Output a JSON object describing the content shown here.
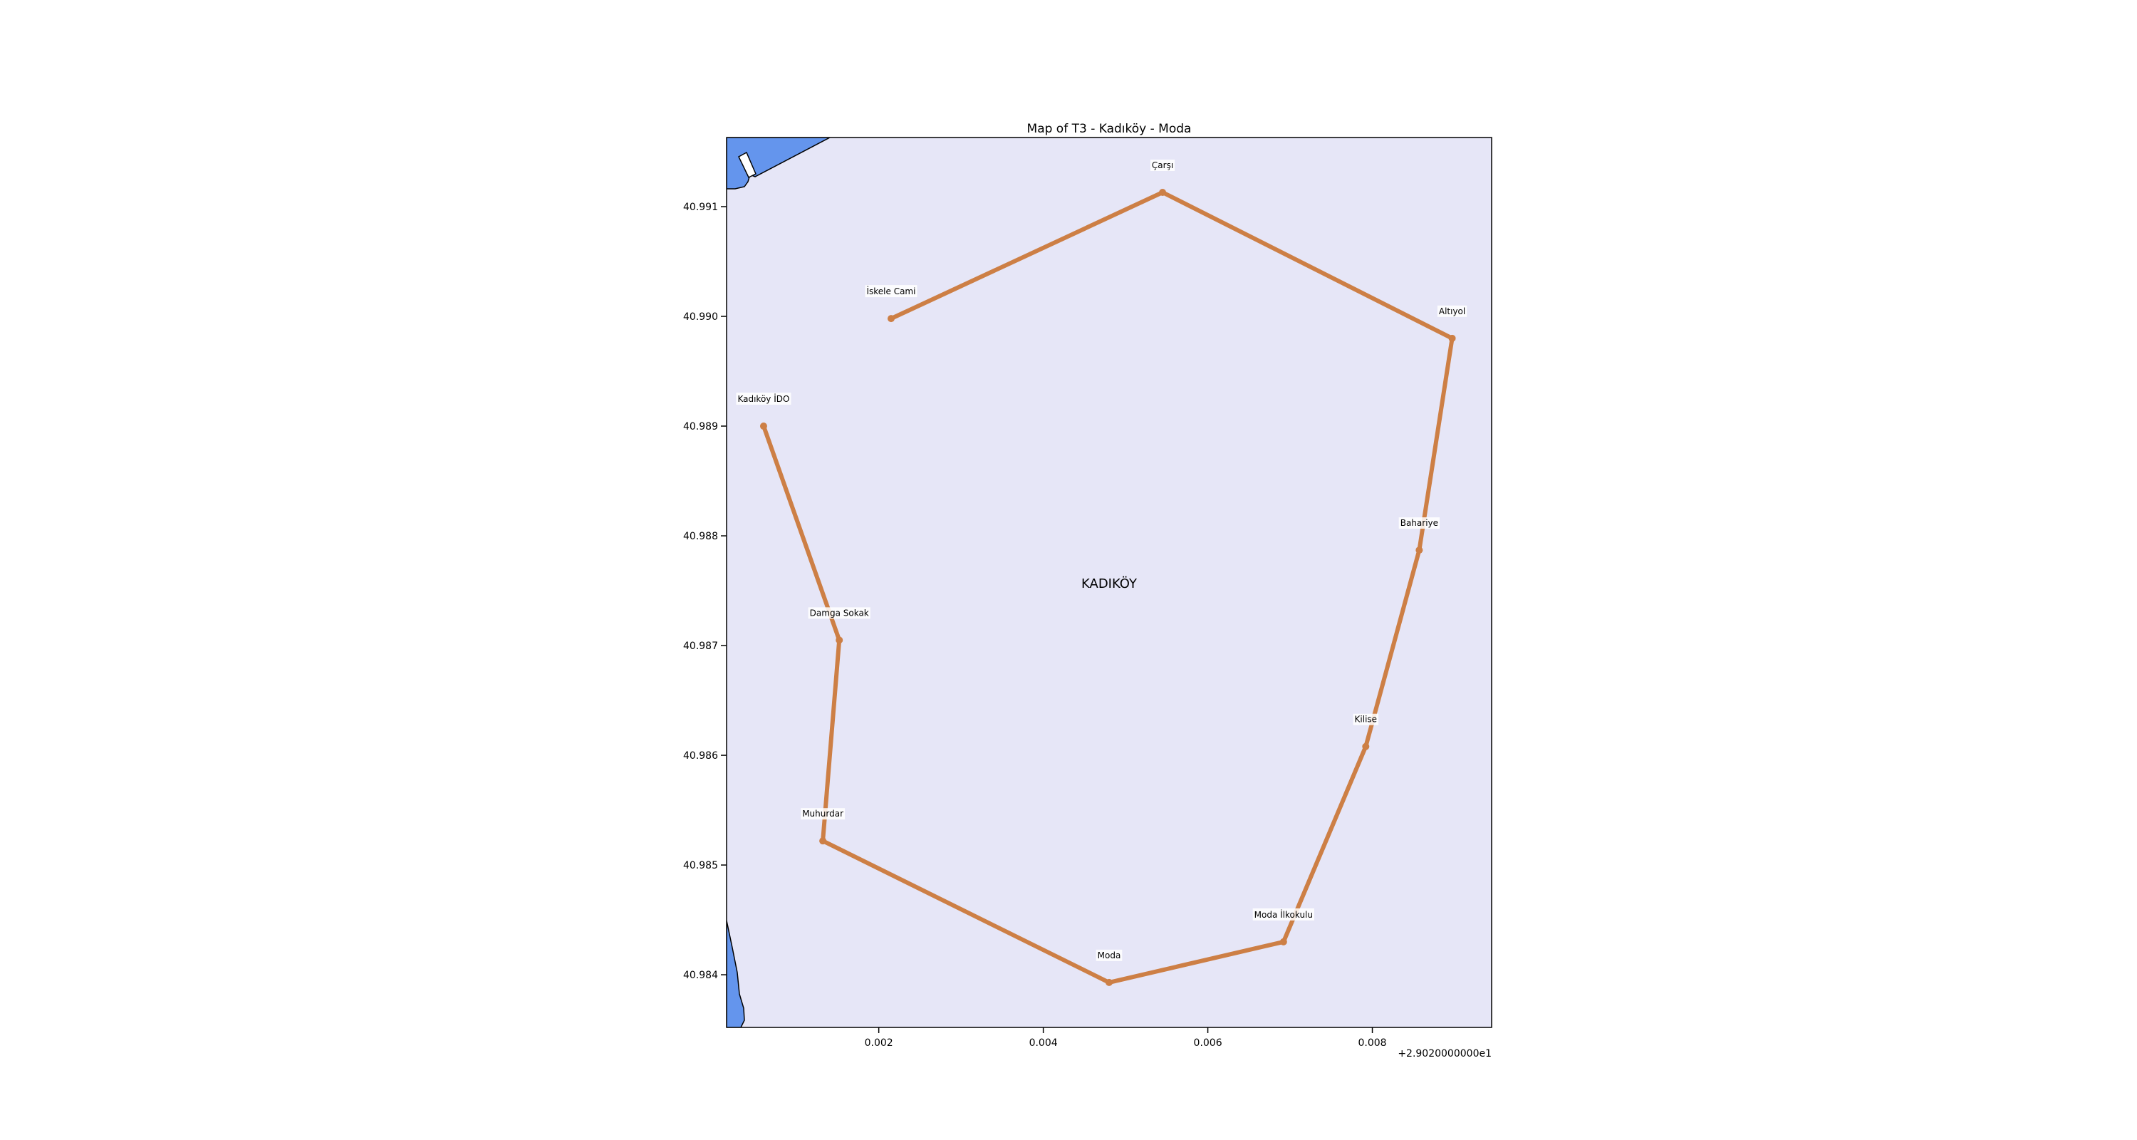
{
  "title": "Map of T3 - Kadıköy - Moda",
  "district_label": "KADIKÖY",
  "x_offset_label": "+2.9020000000e1",
  "colors": {
    "background": "#e6e6f7",
    "sea": "#6495ed",
    "route": "#cd7f45",
    "frame": "#000000"
  },
  "chart_data": {
    "type": "map",
    "title": "Map of T3 - Kadıköy - Moda",
    "x_offset": 29.02,
    "xlim": [
      0.00015,
      0.00945
    ],
    "ylim": [
      40.98352,
      40.99163
    ],
    "x_ticks": [
      0.002,
      0.004,
      0.006,
      0.008
    ],
    "x_tick_labels": [
      "0.002",
      "0.004",
      "0.006",
      "0.008"
    ],
    "y_ticks": [
      40.984,
      40.985,
      40.986,
      40.987,
      40.988,
      40.989,
      40.99,
      40.991
    ],
    "y_tick_labels": [
      "40.984",
      "40.985",
      "40.986",
      "40.987",
      "40.988",
      "40.989",
      "40.990",
      "40.991"
    ],
    "grid": false,
    "stops": [
      {
        "name": "Kadıköy İDO",
        "x": 0.0006,
        "y": 40.989
      },
      {
        "name": "Damga Sokak",
        "x": 0.00152,
        "y": 40.98705
      },
      {
        "name": "Muhurdar",
        "x": 0.00132,
        "y": 40.98522
      },
      {
        "name": "Moda",
        "x": 0.0048,
        "y": 40.98393
      },
      {
        "name": "Moda İlkokulu",
        "x": 0.00692,
        "y": 40.9843
      },
      {
        "name": "Kilise",
        "x": 0.00792,
        "y": 40.98608
      },
      {
        "name": "Bahariye",
        "x": 0.00857,
        "y": 40.98787
      },
      {
        "name": "Altıyol",
        "x": 0.00897,
        "y": 40.9898
      },
      {
        "name": "Çarşı",
        "x": 0.00545,
        "y": 40.99113
      },
      {
        "name": "İskele Cami",
        "x": 0.00215,
        "y": 40.98998
      }
    ],
    "route_order": [
      "Kadıköy İDO",
      "Damga Sokak",
      "Muhurdar",
      "Moda",
      "Moda İlkokulu",
      "Kilise",
      "Bahariye",
      "Altıyol",
      "Çarşı",
      "İskele Cami"
    ]
  }
}
